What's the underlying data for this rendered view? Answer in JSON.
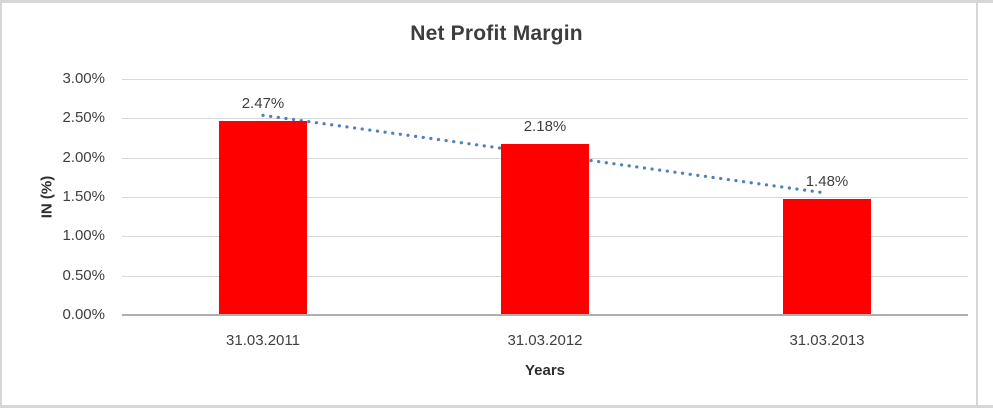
{
  "chart_data": {
    "type": "bar",
    "title": "Net Profit Margin",
    "xlabel": "Years",
    "ylabel": "IN (%)",
    "categories": [
      "31.03.2011",
      "31.03.2012",
      "31.03.2013"
    ],
    "values": [
      2.47,
      2.18,
      1.48
    ],
    "data_labels": [
      "2.47%",
      "2.18%",
      "1.48%"
    ],
    "y_ticks": [
      {
        "value": 0.0,
        "label": "0.00%"
      },
      {
        "value": 0.5,
        "label": "0.50%"
      },
      {
        "value": 1.0,
        "label": "1.00%"
      },
      {
        "value": 1.5,
        "label": "1.50%"
      },
      {
        "value": 2.0,
        "label": "2.00%"
      },
      {
        "value": 2.5,
        "label": "2.50%"
      },
      {
        "value": 3.0,
        "label": "3.00%"
      }
    ],
    "ylim": [
      0,
      3.0
    ],
    "grid": true,
    "legend": "none",
    "bar_color": "#ff0000",
    "trendline": {
      "type": "linear",
      "style": "dotted",
      "color": "#4f81bd"
    }
  }
}
